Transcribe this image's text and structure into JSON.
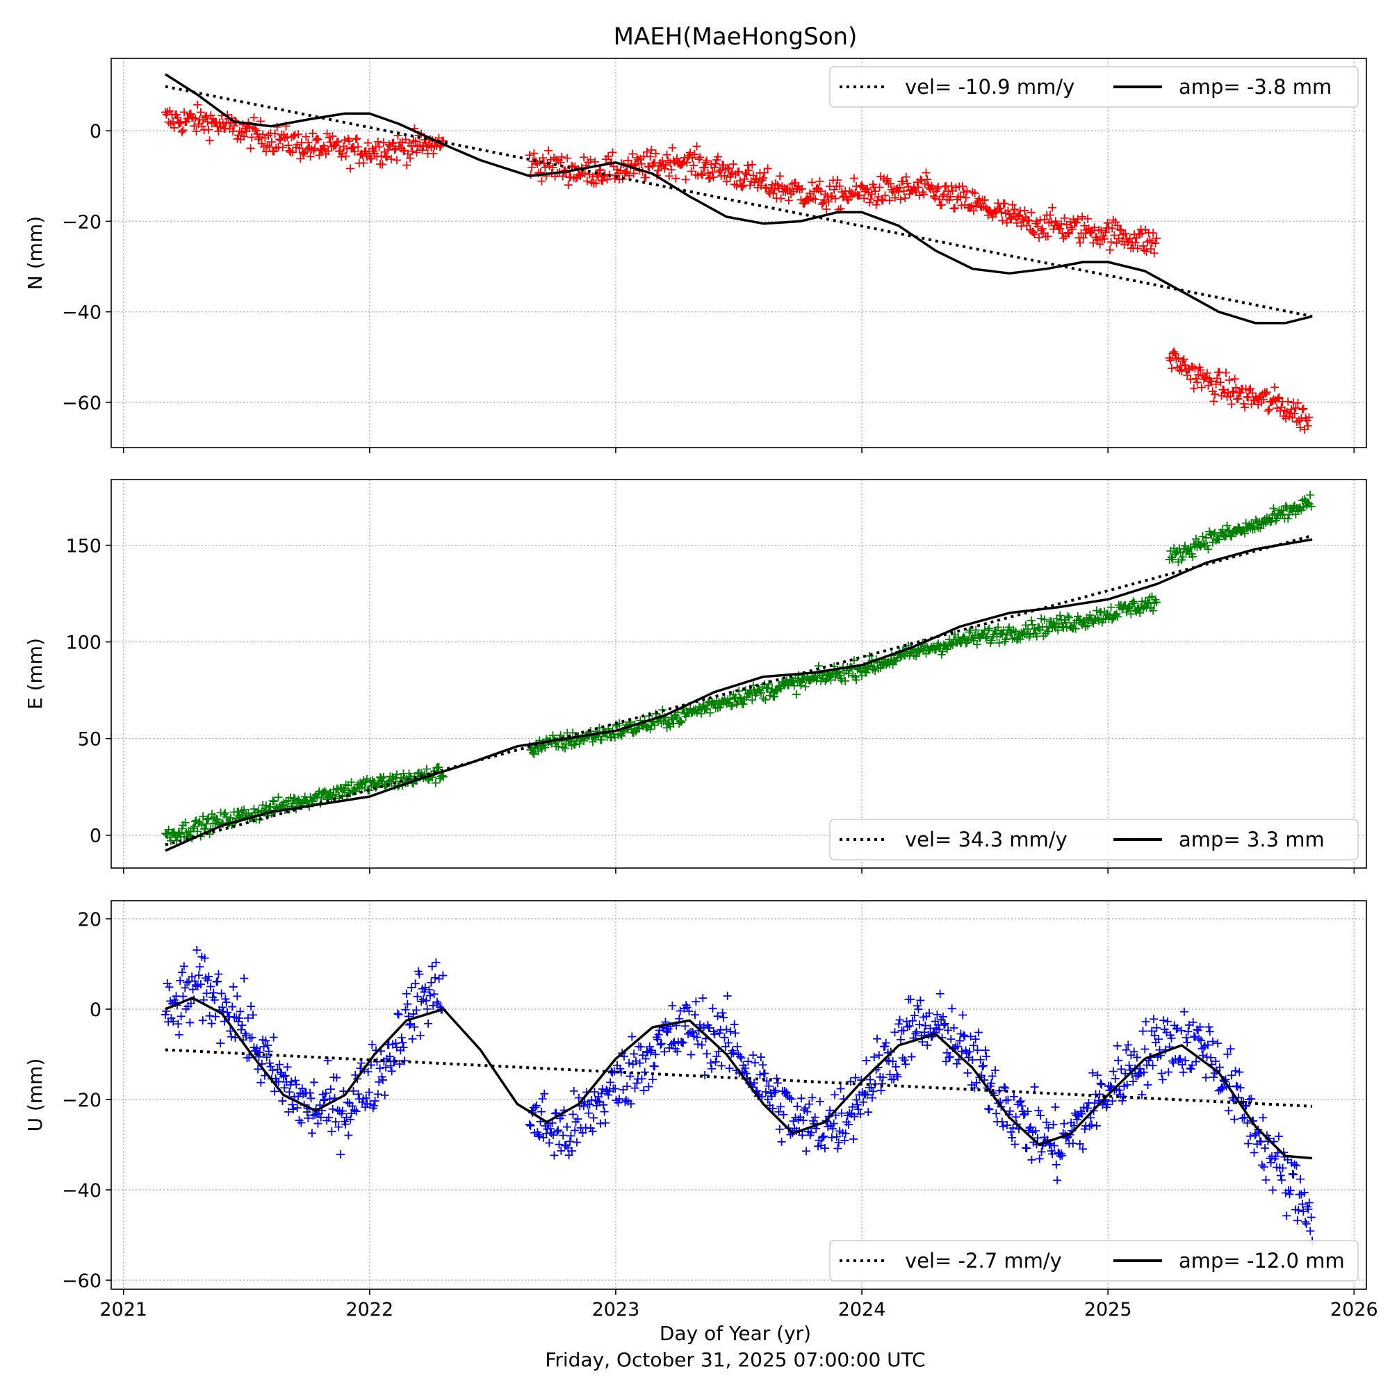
{
  "figure": {
    "title": "MAEH(MaeHongSon)",
    "xlabel": "Day of Year (yr)",
    "footer": "Friday, October 31, 2025 07:00:00 UTC"
  },
  "chart_data": [
    {
      "type": "scatter",
      "component": "N",
      "ylabel": "N (mm)",
      "xlim": [
        2020.95,
        2026.05
      ],
      "ylim": [
        -70,
        16
      ],
      "xticks": [
        2021,
        2022,
        2023,
        2024,
        2025,
        2026
      ],
      "yticks": [
        -60,
        -40,
        -20,
        0
      ],
      "grid": true,
      "point_color": "#ff0000",
      "legend": {
        "position": "top-right",
        "entries": [
          "vel= -10.9 mm/y",
          "amp= -3.8 mm"
        ]
      },
      "series": [
        {
          "kind": "observations",
          "segments": [
            {
              "x": [
                2021.17,
                2021.35,
                2021.55,
                2021.75,
                2021.95,
                2022.15,
                2022.3
              ],
              "y": [
                2.5,
                2.0,
                -1.0,
                -3.5,
                -4.5,
                -3.5,
                -3.0
              ]
            },
            {
              "x": [
                2022.65,
                2022.85,
                2023.05,
                2023.25,
                2023.45,
                2023.65,
                2023.85,
                2024.05,
                2024.25,
                2024.45,
                2024.65,
                2024.85,
                2025.05,
                2025.2
              ],
              "y": [
                -7.0,
                -9.0,
                -8.5,
                -6.5,
                -9.0,
                -12.5,
                -14.5,
                -13.5,
                -13.0,
                -16.0,
                -20.0,
                -21.5,
                -23.0,
                -25.0
              ]
            },
            {
              "x": [
                2025.25,
                2025.4,
                2025.55,
                2025.7,
                2025.82
              ],
              "y": [
                -50.0,
                -55.5,
                -58.5,
                -60.5,
                -64.0
              ]
            }
          ]
        },
        {
          "kind": "linear",
          "style": "dotted",
          "x": [
            2021.17,
            2025.83
          ],
          "y": [
            9.8,
            -41.0
          ]
        },
        {
          "kind": "seasonal",
          "style": "solid",
          "amp": -3.8,
          "x": [
            2021.17,
            2021.3,
            2021.45,
            2021.6,
            2021.75,
            2021.9,
            2022.0,
            2022.12,
            2022.3,
            2022.45,
            2022.65,
            2022.8,
            2023.0,
            2023.15,
            2023.3,
            2023.45,
            2023.6,
            2023.75,
            2023.9,
            2024.0,
            2024.15,
            2024.3,
            2024.45,
            2024.6,
            2024.75,
            2024.9,
            2025.0,
            2025.15,
            2025.3,
            2025.45,
            2025.6,
            2025.72,
            2025.83
          ],
          "y": [
            12.5,
            8.0,
            2.0,
            1.0,
            2.5,
            3.8,
            3.8,
            1.5,
            -3.0,
            -6.5,
            -10.0,
            -9.0,
            -7.0,
            -9.5,
            -14.5,
            -19.0,
            -20.5,
            -20.0,
            -18.0,
            -18.0,
            -21.0,
            -26.5,
            -30.5,
            -31.5,
            -30.5,
            -29.0,
            -29.0,
            -31.0,
            -35.5,
            -40.0,
            -42.5,
            -42.5,
            -41.0
          ]
        }
      ]
    },
    {
      "type": "scatter",
      "component": "E",
      "ylabel": "E (mm)",
      "xlim": [
        2020.95,
        2026.05
      ],
      "ylim": [
        -17,
        184
      ],
      "xticks": [
        2021,
        2022,
        2023,
        2024,
        2025,
        2026
      ],
      "yticks": [
        0,
        50,
        100,
        150
      ],
      "grid": true,
      "point_color": "#008000",
      "legend": {
        "position": "bottom-right",
        "entries": [
          "vel= 34.3 mm/y",
          "amp= 3.3 mm"
        ]
      },
      "series": [
        {
          "kind": "observations",
          "segments": [
            {
              "x": [
                2021.17,
                2021.35,
                2021.55,
                2021.75,
                2021.95,
                2022.15,
                2022.3
              ],
              "y": [
                0.0,
                6.0,
                12.0,
                19.0,
                25.0,
                29.0,
                32.0
              ]
            },
            {
              "x": [
                2022.65,
                2022.85,
                2023.05,
                2023.25,
                2023.45,
                2023.65,
                2023.85,
                2024.05,
                2024.25,
                2024.45,
                2024.65,
                2024.85,
                2025.05,
                2025.2
              ],
              "y": [
                45.0,
                50.0,
                55.0,
                61.0,
                70.0,
                76.0,
                82.0,
                88.0,
                96.0,
                102.0,
                106.0,
                110.0,
                116.0,
                121.0
              ]
            },
            {
              "x": [
                2025.25,
                2025.4,
                2025.55,
                2025.7,
                2025.83
              ],
              "y": [
                143.0,
                153.0,
                158.0,
                165.0,
                173.0
              ]
            }
          ]
        },
        {
          "kind": "linear",
          "style": "dotted",
          "x": [
            2021.17,
            2025.83
          ],
          "y": [
            -5.0,
            155.0
          ]
        },
        {
          "kind": "seasonal",
          "style": "solid",
          "amp": 3.3,
          "x": [
            2021.17,
            2021.4,
            2021.6,
            2021.8,
            2022.0,
            2022.2,
            2022.4,
            2022.6,
            2022.8,
            2023.0,
            2023.2,
            2023.4,
            2023.6,
            2023.8,
            2024.0,
            2024.2,
            2024.4,
            2024.6,
            2024.8,
            2025.0,
            2025.2,
            2025.4,
            2025.6,
            2025.83
          ],
          "y": [
            -8.0,
            5.0,
            12.0,
            16.0,
            20.0,
            29.0,
            37.0,
            46.0,
            50.0,
            54.0,
            62.0,
            74.0,
            82.0,
            84.0,
            88.0,
            97.0,
            108.0,
            115.0,
            118.0,
            122.0,
            130.0,
            141.0,
            148.0,
            153.0
          ]
        }
      ]
    },
    {
      "type": "scatter",
      "component": "U",
      "ylabel": "U (mm)",
      "xlim": [
        2020.95,
        2026.05
      ],
      "ylim": [
        -62,
        24
      ],
      "xticks": [
        2021,
        2022,
        2023,
        2024,
        2025,
        2026
      ],
      "yticks": [
        -60,
        -40,
        -20,
        0,
        20
      ],
      "grid": true,
      "point_color": "#0000ff",
      "legend": {
        "position": "bottom-right",
        "entries": [
          "vel= -2.7 mm/y",
          "amp= -12.0 mm"
        ]
      },
      "series": [
        {
          "kind": "observations",
          "segments": [
            {
              "x": [
                2021.17,
                2021.3,
                2021.45,
                2021.6,
                2021.75,
                2021.9,
                2022.05,
                2022.2,
                2022.3
              ],
              "y": [
                -2.0,
                5.0,
                0.0,
                -14.0,
                -22.0,
                -22.0,
                -13.0,
                2.0,
                5.0
              ]
            },
            {
              "x": [
                2022.65,
                2022.8,
                2023.0,
                2023.15,
                2023.3,
                2023.45,
                2023.6,
                2023.75,
                2023.9,
                2024.05,
                2024.2,
                2024.35,
                2024.5,
                2024.65,
                2024.8,
                2024.95,
                2025.1,
                2025.25,
                2025.4,
                2025.55,
                2025.7,
                2025.83
              ],
              "y": [
                -24.0,
                -28.0,
                -17.0,
                -9.0,
                -4.0,
                -7.0,
                -17.0,
                -26.0,
                -25.0,
                -15.0,
                -4.0,
                -5.0,
                -15.0,
                -25.0,
                -31.0,
                -21.0,
                -12.0,
                -7.0,
                -8.0,
                -22.0,
                -36.0,
                -45.0
              ]
            }
          ]
        },
        {
          "kind": "linear",
          "style": "dotted",
          "x": [
            2021.17,
            2025.83
          ],
          "y": [
            -9.0,
            -21.5
          ]
        },
        {
          "kind": "seasonal",
          "style": "solid",
          "amp": -12.0,
          "x": [
            2021.17,
            2021.28,
            2021.4,
            2021.52,
            2021.65,
            2021.78,
            2021.9,
            2022.02,
            2022.15,
            2022.3,
            2022.45,
            2022.6,
            2022.72,
            2022.85,
            2023.0,
            2023.15,
            2023.3,
            2023.45,
            2023.6,
            2023.72,
            2023.85,
            2024.0,
            2024.15,
            2024.3,
            2024.45,
            2024.6,
            2024.72,
            2024.85,
            2025.0,
            2025.15,
            2025.3,
            2025.45,
            2025.6,
            2025.72,
            2025.83
          ],
          "y": [
            0.0,
            2.5,
            -1.0,
            -10.0,
            -19.0,
            -22.5,
            -19.0,
            -10.0,
            -2.5,
            0.0,
            -9.0,
            -21.0,
            -25.0,
            -21.0,
            -11.0,
            -4.0,
            -2.5,
            -10.0,
            -21.0,
            -27.5,
            -25.0,
            -16.0,
            -8.0,
            -5.5,
            -13.0,
            -24.0,
            -30.0,
            -27.5,
            -19.0,
            -11.0,
            -8.0,
            -14.0,
            -26.0,
            -32.5,
            -33.0
          ]
        }
      ]
    }
  ]
}
